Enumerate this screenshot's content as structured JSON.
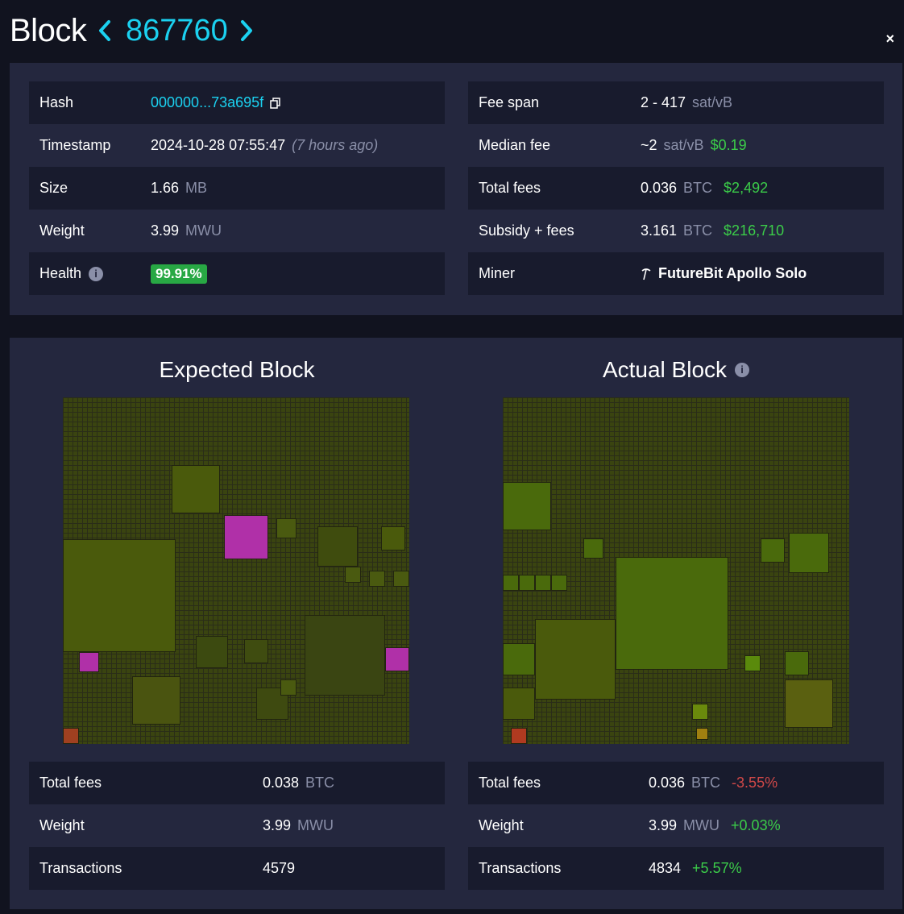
{
  "header": {
    "title": "Block",
    "height": "867760",
    "prev_icon": "chevron-left-icon",
    "next_icon": "chevron-right-icon",
    "close_label": "×"
  },
  "details_left": [
    {
      "label": "Hash",
      "value": "000000...73a695f",
      "icon": "copy-icon"
    },
    {
      "label": "Timestamp",
      "value": "2024-10-28 07:55:47",
      "note": "(7 hours ago)"
    },
    {
      "label": "Size",
      "value": "1.66",
      "unit": "MB"
    },
    {
      "label": "Weight",
      "value": "3.99",
      "unit": "MWU"
    },
    {
      "label": "Health",
      "value": "99.91%",
      "icon": "info-icon"
    }
  ],
  "details_right": [
    {
      "label": "Fee span",
      "value": "2 - 417",
      "unit": "sat/vB"
    },
    {
      "label": "Median fee",
      "value": "~2",
      "unit": "sat/vB",
      "fiat": "$0.19"
    },
    {
      "label": "Total fees",
      "value": "0.036",
      "unit": "BTC",
      "fiat": "$2,492"
    },
    {
      "label": "Subsidy + fees",
      "value": "3.161",
      "unit": "BTC",
      "fiat": "$216,710"
    },
    {
      "label": "Miner",
      "value": "FutureBit Apollo Solo",
      "icon": "pickaxe-icon"
    }
  ],
  "expected": {
    "title": "Expected Block",
    "rows": [
      {
        "label": "Total fees",
        "value": "0.038",
        "unit": "BTC"
      },
      {
        "label": "Weight",
        "value": "3.99",
        "unit": "MWU"
      },
      {
        "label": "Transactions",
        "value": "4579"
      }
    ]
  },
  "actual": {
    "title": "Actual Block",
    "rows": [
      {
        "label": "Total fees",
        "value": "0.036",
        "unit": "BTC",
        "delta": "-3.55%"
      },
      {
        "label": "Weight",
        "value": "3.99",
        "unit": "MWU",
        "delta": "+0.03%"
      },
      {
        "label": "Transactions",
        "value": "4834",
        "delta": "+5.57%"
      }
    ]
  },
  "colors": {
    "accent": "#1bd1f0",
    "panel": "#24273e",
    "row_dark": "#181b2d",
    "positive": "#3bcc49",
    "negative": "#d04848",
    "health_badge": "#28a844"
  }
}
